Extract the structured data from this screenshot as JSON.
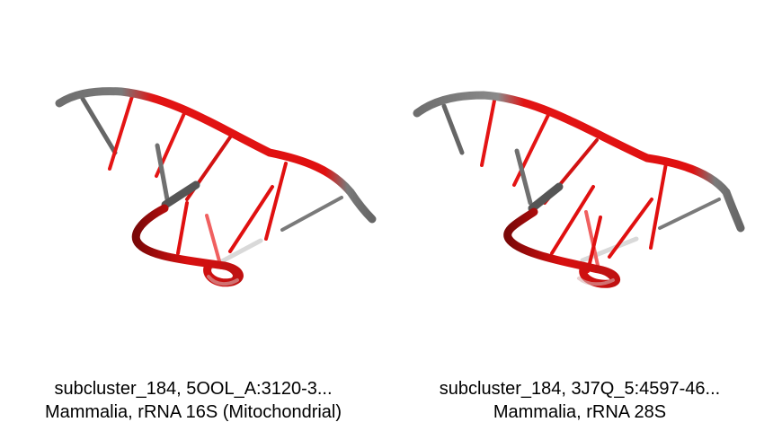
{
  "colors": {
    "backbone_gray": "#6e6e6e",
    "backbone_red": "#e81010",
    "dark_red": "#8a0a0a",
    "background": "#ffffff"
  },
  "panels": [
    {
      "caption_line1": "subcluster_184, 5OOL_A:3120-3...",
      "caption_line2": "Mammalia, rRNA 16S (Mitochondrial)"
    },
    {
      "caption_line1": "subcluster_184, 3J7Q_5:4597-46...",
      "caption_line2": "Mammalia, rRNA 28S"
    }
  ]
}
